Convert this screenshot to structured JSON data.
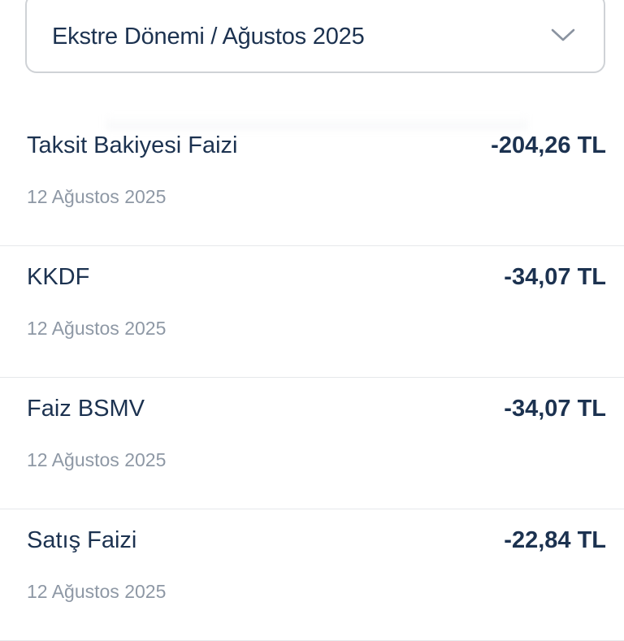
{
  "dropdown": {
    "label": "Ekstre Dönemi / Ağustos 2025",
    "icon": "chevron-down-icon"
  },
  "transactions": [
    {
      "title": "Taksit Bakiyesi Faizi",
      "amount": "-204,26 TL",
      "date": "12 Ağustos 2025"
    },
    {
      "title": "KKDF",
      "amount": "-34,07 TL",
      "date": "12 Ağustos 2025"
    },
    {
      "title": "Faiz BSMV",
      "amount": "-34,07 TL",
      "date": "12 Ağustos 2025"
    },
    {
      "title": "Satış Faizi",
      "amount": "-22,84 TL",
      "date": "12 Ağustos 2025"
    }
  ],
  "colors": {
    "text": "#1c3250",
    "date": "#8e98a5",
    "border": "#cfd2d6"
  }
}
